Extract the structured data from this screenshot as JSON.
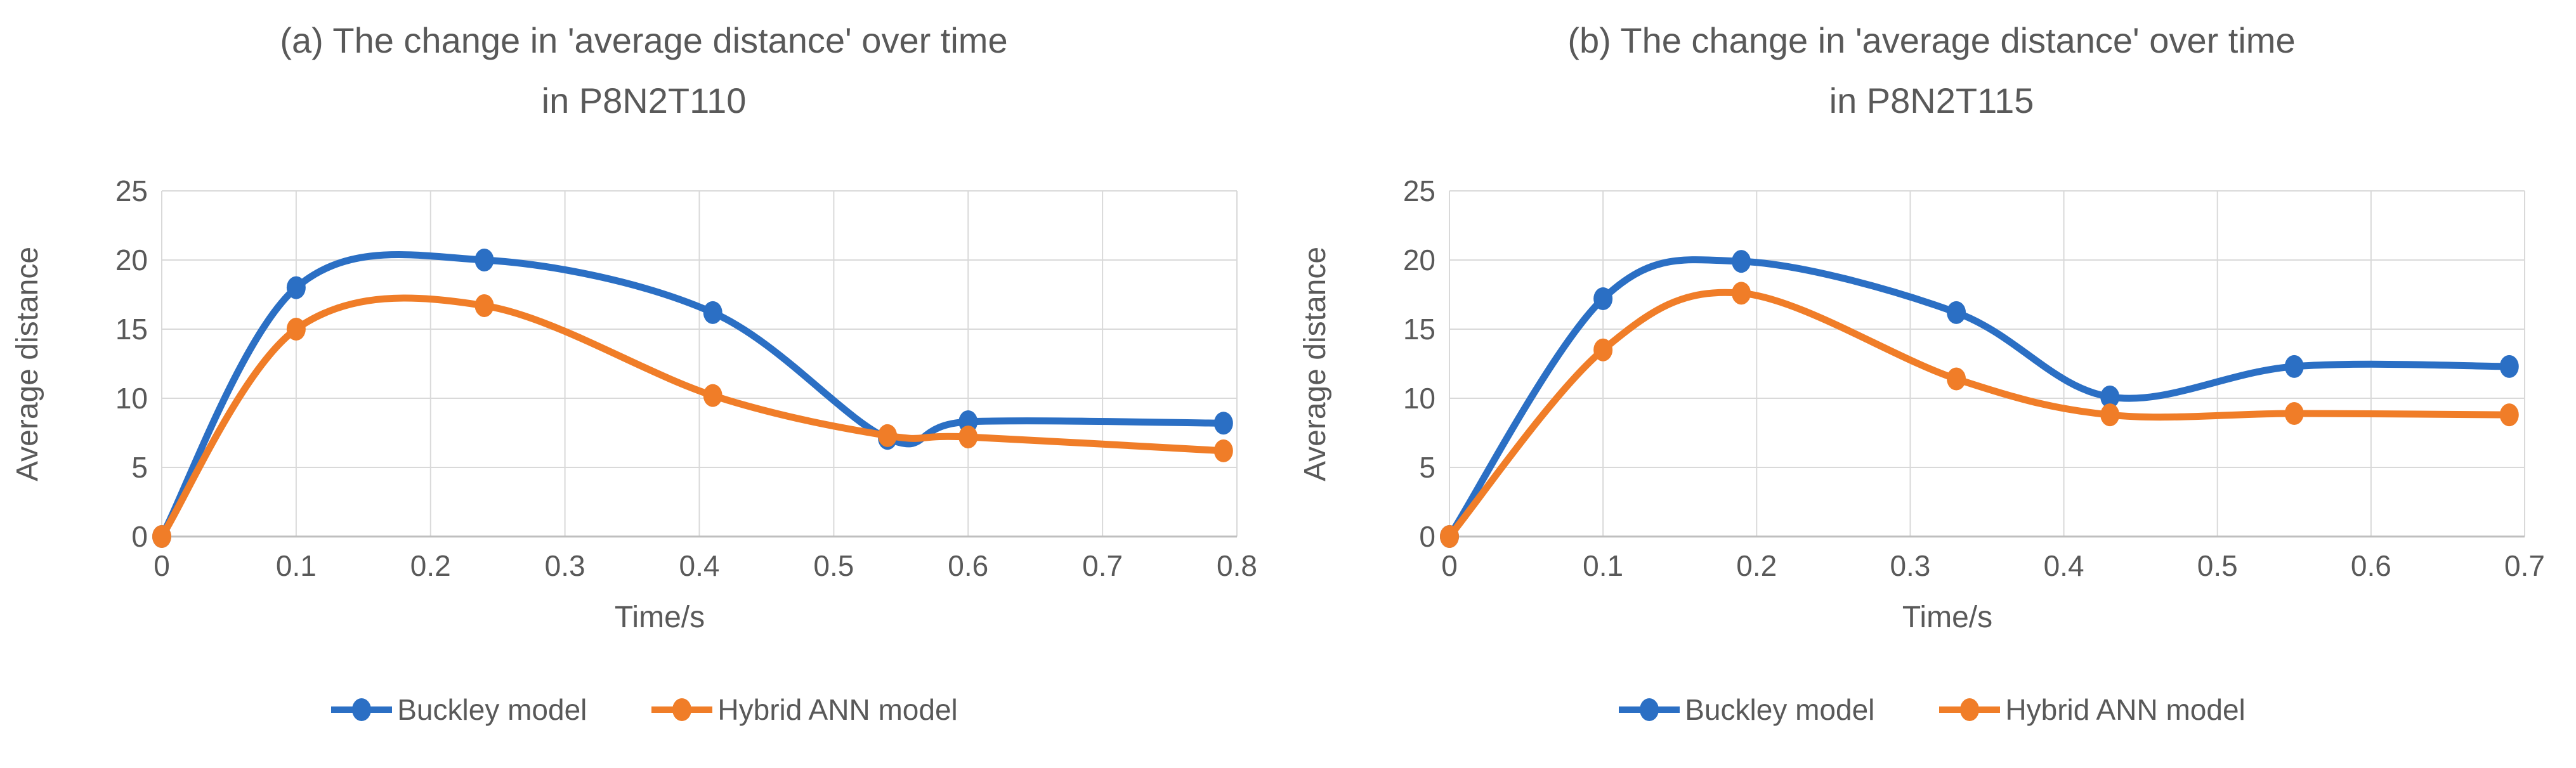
{
  "figure": {
    "background": "#ffffff",
    "text_color": "#595959",
    "grid_color": "#d9d9d9",
    "axis_line_color": "#bfbfbf"
  },
  "chart_data": [
    {
      "type": "line",
      "panel": "a",
      "title_line1": "(a) The change in 'average distance' over time",
      "title_line2": "in P8N2T110",
      "xlabel": "Time/s",
      "ylabel": "Average distance",
      "x": [
        0,
        0.1,
        0.24,
        0.41,
        0.54,
        0.6,
        0.79
      ],
      "series": [
        {
          "name": "Buckley model",
          "color": "#2B6FC4",
          "values": [
            0,
            18,
            20,
            16.2,
            7.1,
            8.3,
            8.2
          ]
        },
        {
          "name": "Hybrid ANN model",
          "color": "#F07D28",
          "values": [
            0,
            15,
            16.7,
            10.2,
            7.3,
            7.2,
            6.2
          ]
        }
      ],
      "xlim": [
        0,
        0.8
      ],
      "ylim": [
        0,
        25
      ],
      "xticks": [
        0,
        0.1,
        0.2,
        0.3,
        0.4,
        0.5,
        0.6,
        0.7,
        0.8
      ],
      "yticks": [
        0,
        5,
        10,
        15,
        20,
        25
      ],
      "grid": true,
      "smooth": true,
      "legend_position": "bottom"
    },
    {
      "type": "line",
      "panel": "b",
      "title_line1": "(b) The change in 'average distance' over time",
      "title_line2": "in P8N2T115",
      "xlabel": "Time/s",
      "ylabel": "Average distance",
      "x": [
        0,
        0.1,
        0.19,
        0.33,
        0.43,
        0.55,
        0.69
      ],
      "series": [
        {
          "name": "Buckley model",
          "color": "#2B6FC4",
          "values": [
            0,
            17.2,
            19.9,
            16.2,
            10.1,
            12.3,
            12.3
          ]
        },
        {
          "name": "Hybrid ANN model",
          "color": "#F07D28",
          "values": [
            0,
            13.5,
            17.6,
            11.4,
            8.8,
            8.9,
            8.8
          ]
        }
      ],
      "xlim": [
        0,
        0.7
      ],
      "ylim": [
        0,
        25
      ],
      "xticks": [
        0,
        0.1,
        0.2,
        0.3,
        0.4,
        0.5,
        0.6,
        0.7
      ],
      "yticks": [
        0,
        5,
        10,
        15,
        20,
        25
      ],
      "grid": true,
      "smooth": true,
      "legend_position": "bottom"
    }
  ]
}
